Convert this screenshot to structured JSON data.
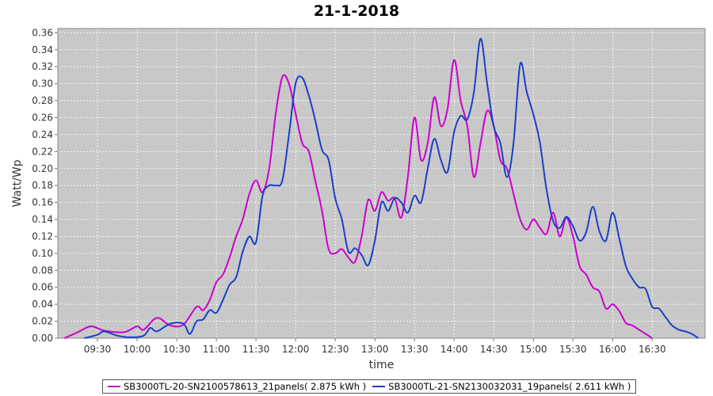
{
  "chart_data": {
    "type": "line",
    "title": "21-1-2018",
    "xlabel": "time",
    "ylabel": "Watt/Wp",
    "x_range": [
      "09:00",
      "17:10"
    ],
    "ylim": [
      0,
      0.365
    ],
    "y_ticks": [
      0.0,
      0.02,
      0.04,
      0.06,
      0.08,
      0.1,
      0.12,
      0.14,
      0.16,
      0.18,
      0.2,
      0.22,
      0.24,
      0.26,
      0.28,
      0.3,
      0.32,
      0.34,
      0.36
    ],
    "x_ticks": [
      "09:30",
      "10:00",
      "10:30",
      "11:00",
      "11:30",
      "12:00",
      "12:30",
      "13:00",
      "13:30",
      "14:00",
      "14:30",
      "15:00",
      "15:30",
      "16:00",
      "16:30"
    ],
    "grid": true,
    "legend_position": "bottom",
    "series": [
      {
        "name": "SB3000TL-20-SN2100578613_21panels( 2.875 kWh )",
        "color": "#cc00cc",
        "points": [
          [
            "09:05",
            0.0
          ],
          [
            "09:15",
            0.007
          ],
          [
            "09:25",
            0.014
          ],
          [
            "09:35",
            0.009
          ],
          [
            "09:50",
            0.007
          ],
          [
            "10:00",
            0.014
          ],
          [
            "10:05",
            0.01
          ],
          [
            "10:15",
            0.024
          ],
          [
            "10:25",
            0.015
          ],
          [
            "10:35",
            0.016
          ],
          [
            "10:45",
            0.037
          ],
          [
            "10:50",
            0.033
          ],
          [
            "10:55",
            0.045
          ],
          [
            "11:00",
            0.066
          ],
          [
            "11:05",
            0.075
          ],
          [
            "11:10",
            0.095
          ],
          [
            "11:15",
            0.12
          ],
          [
            "11:20",
            0.14
          ],
          [
            "11:25",
            0.17
          ],
          [
            "11:30",
            0.186
          ],
          [
            "11:35",
            0.172
          ],
          [
            "11:40",
            0.2
          ],
          [
            "11:45",
            0.265
          ],
          [
            "11:50",
            0.308
          ],
          [
            "11:55",
            0.3
          ],
          [
            "12:00",
            0.265
          ],
          [
            "12:05",
            0.23
          ],
          [
            "12:10",
            0.22
          ],
          [
            "12:15",
            0.185
          ],
          [
            "12:20",
            0.15
          ],
          [
            "12:25",
            0.105
          ],
          [
            "12:30",
            0.1
          ],
          [
            "12:35",
            0.105
          ],
          [
            "12:40",
            0.095
          ],
          [
            "12:45",
            0.09
          ],
          [
            "12:50",
            0.12
          ],
          [
            "12:55",
            0.163
          ],
          [
            "13:00",
            0.15
          ],
          [
            "13:05",
            0.172
          ],
          [
            "13:10",
            0.162
          ],
          [
            "13:15",
            0.165
          ],
          [
            "13:20",
            0.142
          ],
          [
            "13:25",
            0.19
          ],
          [
            "13:30",
            0.26
          ],
          [
            "13:35",
            0.21
          ],
          [
            "13:40",
            0.23
          ],
          [
            "13:45",
            0.284
          ],
          [
            "13:50",
            0.25
          ],
          [
            "13:55",
            0.27
          ],
          [
            "14:00",
            0.328
          ],
          [
            "14:05",
            0.28
          ],
          [
            "14:10",
            0.25
          ],
          [
            "14:15",
            0.19
          ],
          [
            "14:20",
            0.23
          ],
          [
            "14:25",
            0.268
          ],
          [
            "14:30",
            0.25
          ],
          [
            "14:35",
            0.21
          ],
          [
            "14:40",
            0.2
          ],
          [
            "14:45",
            0.17
          ],
          [
            "14:50",
            0.14
          ],
          [
            "14:55",
            0.128
          ],
          [
            "15:00",
            0.14
          ],
          [
            "15:05",
            0.13
          ],
          [
            "15:10",
            0.123
          ],
          [
            "15:15",
            0.148
          ],
          [
            "15:20",
            0.12
          ],
          [
            "15:25",
            0.142
          ],
          [
            "15:30",
            0.12
          ],
          [
            "15:35",
            0.085
          ],
          [
            "15:40",
            0.075
          ],
          [
            "15:45",
            0.06
          ],
          [
            "15:50",
            0.055
          ],
          [
            "15:55",
            0.035
          ],
          [
            "16:00",
            0.04
          ],
          [
            "16:05",
            0.032
          ],
          [
            "16:10",
            0.018
          ],
          [
            "16:15",
            0.015
          ],
          [
            "16:20",
            0.01
          ],
          [
            "16:25",
            0.005
          ],
          [
            "16:30",
            0.0
          ]
        ]
      },
      {
        "name": "SB3000TL-21-SN2130032031_19panels( 2.611 kWh )",
        "color": "#1a3fc8",
        "points": [
          [
            "09:20",
            0.0
          ],
          [
            "09:30",
            0.004
          ],
          [
            "09:35",
            0.008
          ],
          [
            "09:45",
            0.003
          ],
          [
            "09:55",
            0.001
          ],
          [
            "10:05",
            0.003
          ],
          [
            "10:10",
            0.012
          ],
          [
            "10:15",
            0.008
          ],
          [
            "10:25",
            0.017
          ],
          [
            "10:35",
            0.017
          ],
          [
            "10:40",
            0.005
          ],
          [
            "10:45",
            0.02
          ],
          [
            "10:50",
            0.022
          ],
          [
            "10:55",
            0.033
          ],
          [
            "11:00",
            0.03
          ],
          [
            "11:05",
            0.045
          ],
          [
            "11:10",
            0.063
          ],
          [
            "11:15",
            0.072
          ],
          [
            "11:20",
            0.102
          ],
          [
            "11:25",
            0.12
          ],
          [
            "11:30",
            0.113
          ],
          [
            "11:35",
            0.168
          ],
          [
            "11:40",
            0.18
          ],
          [
            "11:45",
            0.18
          ],
          [
            "11:50",
            0.186
          ],
          [
            "11:55",
            0.24
          ],
          [
            "12:00",
            0.3
          ],
          [
            "12:05",
            0.307
          ],
          [
            "12:10",
            0.286
          ],
          [
            "12:15",
            0.256
          ],
          [
            "12:20",
            0.222
          ],
          [
            "12:25",
            0.21
          ],
          [
            "12:30",
            0.165
          ],
          [
            "12:35",
            0.14
          ],
          [
            "12:40",
            0.102
          ],
          [
            "12:45",
            0.106
          ],
          [
            "12:50",
            0.098
          ],
          [
            "12:55",
            0.086
          ],
          [
            "13:00",
            0.115
          ],
          [
            "13:05",
            0.16
          ],
          [
            "13:10",
            0.15
          ],
          [
            "13:15",
            0.165
          ],
          [
            "13:20",
            0.16
          ],
          [
            "13:25",
            0.148
          ],
          [
            "13:30",
            0.168
          ],
          [
            "13:35",
            0.16
          ],
          [
            "13:40",
            0.2
          ],
          [
            "13:45",
            0.235
          ],
          [
            "13:50",
            0.21
          ],
          [
            "13:55",
            0.196
          ],
          [
            "14:00",
            0.243
          ],
          [
            "14:05",
            0.262
          ],
          [
            "14:10",
            0.258
          ],
          [
            "14:15",
            0.29
          ],
          [
            "14:20",
            0.353
          ],
          [
            "14:25",
            0.3
          ],
          [
            "14:30",
            0.25
          ],
          [
            "14:35",
            0.23
          ],
          [
            "14:40",
            0.19
          ],
          [
            "14:45",
            0.23
          ],
          [
            "14:50",
            0.323
          ],
          [
            "14:55",
            0.29
          ],
          [
            "15:00",
            0.264
          ],
          [
            "15:05",
            0.23
          ],
          [
            "15:10",
            0.175
          ],
          [
            "15:15",
            0.138
          ],
          [
            "15:20",
            0.13
          ],
          [
            "15:25",
            0.143
          ],
          [
            "15:30",
            0.132
          ],
          [
            "15:35",
            0.115
          ],
          [
            "15:40",
            0.125
          ],
          [
            "15:45",
            0.155
          ],
          [
            "15:50",
            0.126
          ],
          [
            "15:55",
            0.115
          ],
          [
            "16:00",
            0.148
          ],
          [
            "16:05",
            0.118
          ],
          [
            "16:10",
            0.085
          ],
          [
            "16:15",
            0.07
          ],
          [
            "16:20",
            0.06
          ],
          [
            "16:25",
            0.058
          ],
          [
            "16:30",
            0.037
          ],
          [
            "16:35",
            0.035
          ],
          [
            "16:40",
            0.025
          ],
          [
            "16:45",
            0.015
          ],
          [
            "16:50",
            0.01
          ],
          [
            "16:55",
            0.008
          ],
          [
            "17:00",
            0.005
          ],
          [
            "17:05",
            0.0
          ]
        ]
      }
    ]
  }
}
